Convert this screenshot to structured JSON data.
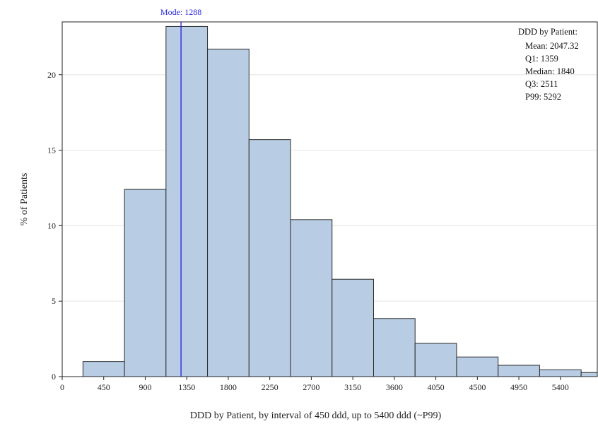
{
  "chart_data": {
    "type": "bar",
    "title": "",
    "xlabel": "DDD by Patient, by interval of 450 ddd, up to 5400 ddd (~P99)",
    "ylabel": "% of Patients",
    "xlim": [
      0,
      5800
    ],
    "ylim": [
      0,
      23.5
    ],
    "x_ticks": [
      0,
      450,
      900,
      1350,
      1800,
      2250,
      2700,
      3150,
      3600,
      4050,
      4500,
      4950,
      5400
    ],
    "y_ticks": [
      0,
      5,
      10,
      15,
      20
    ],
    "bin_width": 450,
    "bins": [
      {
        "start": 225,
        "end": 675,
        "value": 1.0
      },
      {
        "start": 675,
        "end": 1125,
        "value": 12.4
      },
      {
        "start": 1125,
        "end": 1575,
        "value": 23.2
      },
      {
        "start": 1575,
        "end": 2025,
        "value": 21.7
      },
      {
        "start": 2025,
        "end": 2475,
        "value": 15.7
      },
      {
        "start": 2475,
        "end": 2925,
        "value": 10.4
      },
      {
        "start": 2925,
        "end": 3375,
        "value": 6.45
      },
      {
        "start": 3375,
        "end": 3825,
        "value": 3.85
      },
      {
        "start": 3825,
        "end": 4275,
        "value": 2.2
      },
      {
        "start": 4275,
        "end": 4725,
        "value": 1.3
      },
      {
        "start": 4725,
        "end": 5175,
        "value": 0.75
      },
      {
        "start": 5175,
        "end": 5625,
        "value": 0.45
      },
      {
        "start": 5625,
        "end": 6075,
        "value": 0.27
      }
    ],
    "mode_line": {
      "x": 1288,
      "label": "Mode: 1288"
    },
    "grid": "horizontal",
    "stats_box": {
      "title": "DDD by Patient:",
      "lines": [
        "Mean: 2047.32",
        "Q1: 1359",
        "Median: 1840",
        "Q3: 2511",
        "P99: 5292"
      ]
    },
    "colors": {
      "bar_fill": "#b8cce4",
      "bar_stroke": "#2b2b2b",
      "mode_line": "#1f1fe0",
      "grid": "#e6e6e6"
    }
  }
}
